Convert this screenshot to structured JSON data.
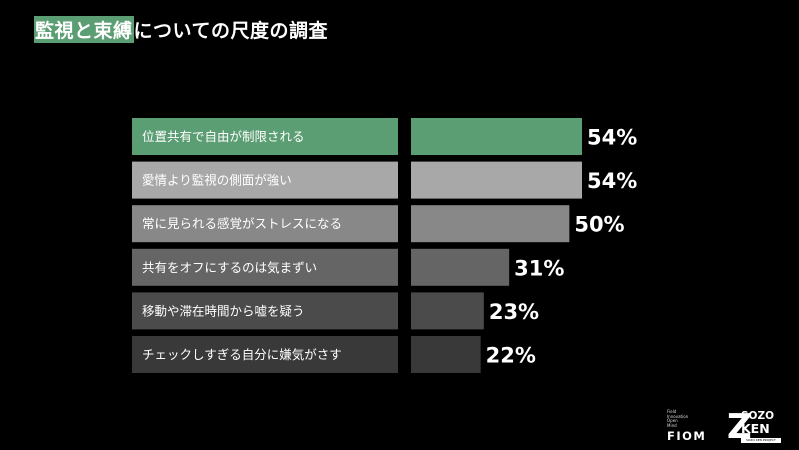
{
  "title": {
    "highlight": "監視と束縛",
    "rest": "についての尺度の調査"
  },
  "chart_data": {
    "type": "bar",
    "orientation": "horizontal",
    "categories": [
      "位置共有で自由が制限される",
      "愛情より監視の側面が強い",
      "常に見られる感覚がストレスになる",
      "共有をオフにするのは気まずい",
      "移動や滞在時間から嘘を疑う",
      "チェックしすぎる自分に嫌気がさす"
    ],
    "values": [
      54,
      54,
      50,
      31,
      23,
      22
    ],
    "value_labels": [
      "54%",
      "54%",
      "50%",
      "31%",
      "23%",
      "22%"
    ],
    "unit": "%",
    "colors": [
      "#5c9e74",
      "#a8a8a8",
      "#888888",
      "#656565",
      "#4b4b4b",
      "#393939"
    ],
    "xlim": [
      0,
      54
    ],
    "grid": false,
    "legend": "none"
  },
  "logos": {
    "fiom_small": "Field\nInnovation\nOpen\nMind",
    "fiom": "FIOM",
    "sozo_z": "Z",
    "sozo_line1": "SOZO",
    "sozo_line2": "KEN",
    "sozo_tag": "SOZO KEN PROJECT"
  }
}
